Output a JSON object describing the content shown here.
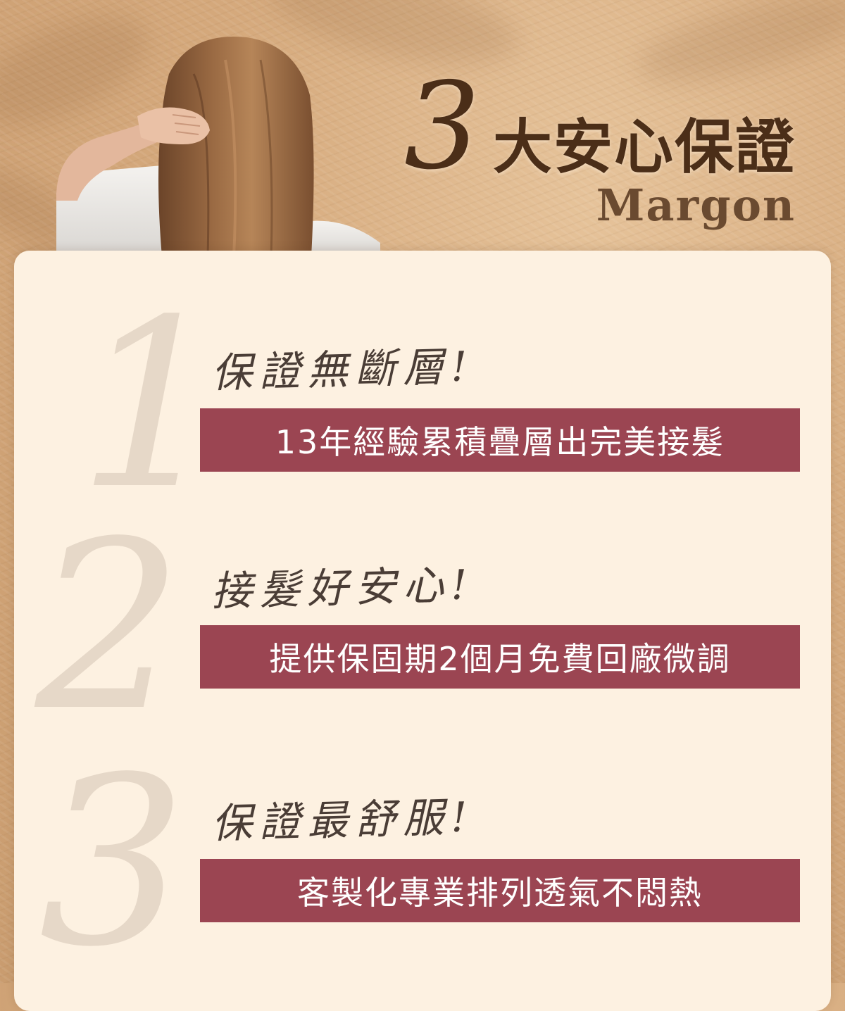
{
  "header": {
    "title_number": "3",
    "title_text": "大安心保證",
    "brand": "Margon"
  },
  "items": [
    {
      "number": "1",
      "heading": "保證無斷層!",
      "description": "13年經驗累積疊層出完美接髮"
    },
    {
      "number": "2",
      "heading": "接髮好安心!",
      "description": "提供保固期2個月免費回廠微調"
    },
    {
      "number": "3",
      "heading": "保證最舒服!",
      "description": "客製化專業排列透氣不悶熱"
    }
  ],
  "colors": {
    "background": "#d5a97c",
    "card": "#fdf1e1",
    "band": "#9b4552",
    "title": "#4b2e18",
    "big_number": "#e6d8c8"
  }
}
